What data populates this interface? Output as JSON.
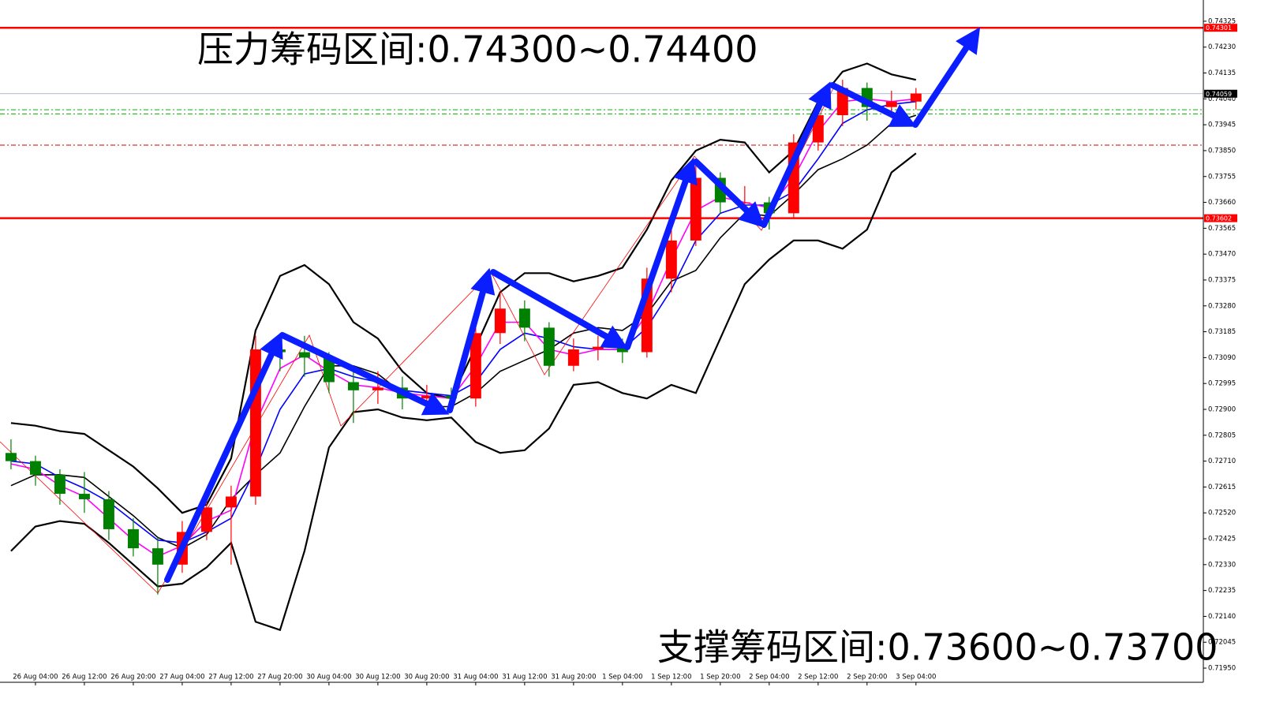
{
  "chart_data": {
    "type": "candlestick",
    "annotations": [
      "压力筹码区间:0.74300~0.74400",
      "支撑筹码区间:0.73600~0.73700"
    ],
    "xlim": [
      -0.45,
      48.75
    ],
    "ylim": [
      0.71898,
      0.74403
    ],
    "xticks": [
      {
        "value": 1,
        "label": "26 Aug 04:00"
      },
      {
        "value": 3,
        "label": "26 Aug 12:00"
      },
      {
        "value": 5,
        "label": "26 Aug 20:00"
      },
      {
        "value": 7,
        "label": "27 Aug 04:00"
      },
      {
        "value": 9,
        "label": "27 Aug 12:00"
      },
      {
        "value": 11,
        "label": "27 Aug 20:00"
      },
      {
        "value": 13,
        "label": "30 Aug 04:00"
      },
      {
        "value": 15,
        "label": "30 Aug 12:00"
      },
      {
        "value": 17,
        "label": "30 Aug 20:00"
      },
      {
        "value": 19,
        "label": "31 Aug 04:00"
      },
      {
        "value": 21,
        "label": "31 Aug 12:00"
      },
      {
        "value": 23,
        "label": "31 Aug 20:00"
      },
      {
        "value": 25,
        "label": "1 Sep 04:00"
      },
      {
        "value": 27,
        "label": "1 Sep 12:00"
      },
      {
        "value": 29,
        "label": "1 Sep 20:00"
      },
      {
        "value": 31,
        "label": "2 Sep 04:00"
      },
      {
        "value": 33,
        "label": "2 Sep 12:00"
      },
      {
        "value": 35,
        "label": "2 Sep 20:00"
      },
      {
        "value": 37,
        "label": "3 Sep 04:00"
      }
    ],
    "yticks": [
      0.74325,
      {
        "value": 0.7423,
        "label": "0.74230"
      },
      0.74135,
      {
        "value": 0.7404,
        "label": "0.74040"
      },
      0.73945,
      {
        "value": 0.7385,
        "label": "0.73850"
      },
      0.73755,
      {
        "value": 0.7366,
        "label": "0.73660"
      },
      0.73565,
      {
        "value": 0.7347,
        "label": "0.73470"
      },
      0.73375,
      {
        "value": 0.7328,
        "label": "0.73280"
      },
      0.73185,
      {
        "value": 0.7309,
        "label": "0.73090"
      },
      0.72995,
      {
        "value": 0.729,
        "label": "0.72900"
      },
      0.72805,
      {
        "value": 0.7271,
        "label": "0.72710"
      },
      0.72615,
      {
        "value": 0.7252,
        "label": "0.72520"
      },
      0.72425,
      {
        "value": 0.7233,
        "label": "0.72330"
      },
      0.72235,
      {
        "value": 0.7214,
        "label": "0.72140"
      },
      0.72045,
      {
        "value": 0.7195,
        "label": "0.71950"
      }
    ],
    "up_color": "#ff0000",
    "down_color": "#008000",
    "open": [
      0.7274,
      0.7271,
      0.7266,
      0.7259,
      0.7257,
      0.7246,
      0.7239,
      0.7233,
      0.7245,
      0.7254,
      0.7258,
      0.7312,
      0.7311,
      0.7309,
      0.73,
      0.7297,
      0.7298,
      0.7294,
      0.7295,
      0.7294,
      0.7318,
      0.7327,
      0.732,
      0.7306,
      0.7312,
      0.7313,
      0.7311,
      0.7338,
      0.7352,
      0.7375,
      0.7366,
      0.7366,
      0.7362,
      0.7388,
      0.7398,
      0.7408,
      0.7401,
      0.7403
    ],
    "high": [
      0.7279,
      0.7273,
      0.7268,
      0.7267,
      0.726,
      0.725,
      0.7243,
      0.7249,
      0.7258,
      0.7262,
      0.7317,
      0.7318,
      0.7317,
      0.7311,
      0.7306,
      0.7304,
      0.7302,
      0.7299,
      0.7298,
      0.7322,
      0.7333,
      0.733,
      0.7322,
      0.7316,
      0.7317,
      0.7316,
      0.7342,
      0.7357,
      0.738,
      0.7377,
      0.7372,
      0.7368,
      0.7391,
      0.7401,
      0.7411,
      0.741,
      0.7407,
      0.7408
    ],
    "low": [
      0.7268,
      0.7262,
      0.7255,
      0.7252,
      0.7242,
      0.7236,
      0.7222,
      0.723,
      0.7242,
      0.7233,
      0.7255,
      0.7304,
      0.7302,
      0.7296,
      0.7285,
      0.7292,
      0.729,
      0.729,
      0.7289,
      0.7291,
      0.7314,
      0.7315,
      0.7302,
      0.7304,
      0.7308,
      0.7307,
      0.7309,
      0.7333,
      0.735,
      0.7362,
      0.7361,
      0.7356,
      0.736,
      0.7385,
      0.7394,
      0.7396,
      0.7397,
      0.74
    ],
    "close": [
      0.7271,
      0.7266,
      0.7259,
      0.7257,
      0.7246,
      0.7239,
      0.7233,
      0.7245,
      0.7254,
      0.7258,
      0.7312,
      0.7311,
      0.7309,
      0.73,
      0.7297,
      0.7298,
      0.7294,
      0.7295,
      0.7294,
      0.7318,
      0.7327,
      0.732,
      0.7306,
      0.7312,
      0.7313,
      0.7311,
      0.7338,
      0.7352,
      0.7375,
      0.7366,
      0.7366,
      0.7362,
      0.7388,
      0.7398,
      0.7408,
      0.7401,
      0.7403,
      0.7406
    ],
    "overlays": [
      {
        "color": "#000000",
        "width": 2.2,
        "values": [
          0.7285,
          0.7284,
          0.7282,
          0.7281,
          0.7275,
          0.7269,
          0.7261,
          0.7252,
          0.7255,
          0.7272,
          0.7319,
          0.7339,
          0.7343,
          0.7336,
          0.7322,
          0.7316,
          0.7304,
          0.7296,
          0.7294,
          0.7313,
          0.7333,
          0.734,
          0.734,
          0.7337,
          0.7339,
          0.7342,
          0.7356,
          0.7374,
          0.7385,
          0.7389,
          0.7388,
          0.7377,
          0.7385,
          0.7403,
          0.7414,
          0.7417,
          0.7413,
          0.7411
        ]
      },
      {
        "color": "#000000",
        "width": 1.6,
        "values": [
          0.7262,
          0.7266,
          0.7266,
          0.7265,
          0.7258,
          0.7251,
          0.7243,
          0.7239,
          0.7244,
          0.7257,
          0.7266,
          0.7274,
          0.7291,
          0.7306,
          0.7306,
          0.7303,
          0.7296,
          0.7291,
          0.7291,
          0.7296,
          0.7304,
          0.7308,
          0.7312,
          0.7318,
          0.732,
          0.7319,
          0.7325,
          0.7337,
          0.7341,
          0.7353,
          0.7362,
          0.7361,
          0.7369,
          0.7378,
          0.7382,
          0.7387,
          0.7395,
          0.7398
        ]
      },
      {
        "color": "#000000",
        "width": 2.2,
        "values": [
          0.7238,
          0.7247,
          0.7249,
          0.7248,
          0.7241,
          0.7233,
          0.7225,
          0.7226,
          0.7232,
          0.7241,
          0.7212,
          0.7209,
          0.7238,
          0.7276,
          0.7289,
          0.729,
          0.7287,
          0.7286,
          0.7287,
          0.7278,
          0.7274,
          0.7275,
          0.7283,
          0.7299,
          0.73,
          0.7296,
          0.7294,
          0.7299,
          0.7296,
          0.7316,
          0.7336,
          0.7345,
          0.7352,
          0.7352,
          0.7349,
          0.7356,
          0.7377,
          0.7384
        ]
      },
      {
        "color": "#0000ff",
        "width": 1.6,
        "values": [
          0.7271,
          0.727,
          0.7265,
          0.7261,
          0.7256,
          0.7249,
          0.7242,
          0.7241,
          0.7245,
          0.725,
          0.7268,
          0.729,
          0.7303,
          0.7305,
          0.7302,
          0.73,
          0.7297,
          0.7296,
          0.7295,
          0.73,
          0.7312,
          0.7318,
          0.7316,
          0.7313,
          0.7312,
          0.7312,
          0.732,
          0.7334,
          0.7352,
          0.7362,
          0.7365,
          0.7365,
          0.737,
          0.7382,
          0.7395,
          0.74,
          0.7402,
          0.7403
        ]
      },
      {
        "color": "#ff00ff",
        "width": 1.6,
        "values": [
          0.727,
          0.7268,
          0.7262,
          0.7258,
          0.725,
          0.7242,
          0.7236,
          0.724,
          0.7249,
          0.7253,
          0.7285,
          0.7305,
          0.731,
          0.7304,
          0.7299,
          0.7298,
          0.7296,
          0.7295,
          0.7294,
          0.7306,
          0.7322,
          0.7322,
          0.7312,
          0.731,
          0.7312,
          0.7312,
          0.7325,
          0.7345,
          0.7363,
          0.7368,
          0.7366,
          0.7364,
          0.7375,
          0.7392,
          0.7403,
          0.7404,
          0.7403,
          0.7404
        ]
      }
    ],
    "tagged_lines": [
      {
        "value": 0.74301,
        "color": "#ff0000",
        "width": 2.5
      },
      {
        "value": 0.73602,
        "color": "#ff0000",
        "width": 2.5
      },
      {
        "value": 0.74059,
        "color": "#000000",
        "width": 0.6
      }
    ],
    "lines": [
      {
        "value": 0.74,
        "color": "#00b000",
        "dash": "6 3 2 3"
      },
      {
        "value": 0.73985,
        "color": "#00b000",
        "dash": "6 3 2 3"
      },
      {
        "value": 0.7387,
        "color": "#d00000",
        "dash": "6 3 2 3"
      }
    ]
  }
}
